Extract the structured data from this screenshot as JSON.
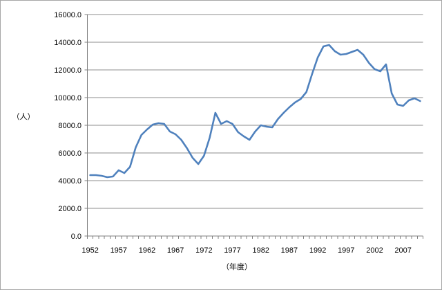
{
  "colors": {
    "line": "#4F81BD",
    "grid": "#8c8c8c",
    "axis": "#7f7f7f",
    "frame": "#a6a6a6",
    "background": "#ffffff",
    "text": "#000000"
  },
  "chart_data": {
    "type": "line",
    "title": "",
    "ylabel": "（人）",
    "xlabel": "（年度）",
    "ylim": [
      0,
      16000
    ],
    "ytick_step": 2000,
    "ytick_labels": [
      "0.0",
      "2000.0",
      "4000.0",
      "6000.0",
      "8000.0",
      "10000.0",
      "12000.0",
      "14000.0",
      "16000.0"
    ],
    "xtick_labels": [
      "1952",
      "1957",
      "1962",
      "1967",
      "1972",
      "1977",
      "1982",
      "1987",
      "1992",
      "1997",
      "2002",
      "2007"
    ],
    "grid": true,
    "legend_position": "none",
    "x": [
      1952,
      1953,
      1954,
      1955,
      1956,
      1957,
      1958,
      1959,
      1960,
      1961,
      1962,
      1963,
      1964,
      1965,
      1966,
      1967,
      1968,
      1969,
      1970,
      1971,
      1972,
      1973,
      1974,
      1975,
      1976,
      1977,
      1978,
      1979,
      1980,
      1981,
      1982,
      1983,
      1984,
      1985,
      1986,
      1987,
      1988,
      1989,
      1990,
      1991,
      1992,
      1993,
      1994,
      1995,
      1996,
      1997,
      1998,
      1999,
      2000,
      2001,
      2002,
      2003,
      2004,
      2005,
      2006,
      2007,
      2008,
      2009,
      2010
    ],
    "series": [
      {
        "name": "",
        "values": [
          4400,
          4400,
          4350,
          4250,
          4300,
          4750,
          4550,
          5000,
          6400,
          7300,
          7700,
          8050,
          8150,
          8100,
          7550,
          7350,
          6950,
          6350,
          5650,
          5200,
          5800,
          7100,
          8900,
          8100,
          8300,
          8100,
          7500,
          7200,
          6950,
          7550,
          8000,
          7900,
          7850,
          8450,
          8900,
          9300,
          9650,
          9900,
          10400,
          11700,
          12900,
          13700,
          13800,
          13350,
          13100,
          13150,
          13300,
          13450,
          13100,
          12500,
          12050,
          11900,
          12400,
          10300,
          9500,
          9400,
          9800,
          9950,
          9750
        ]
      }
    ]
  }
}
